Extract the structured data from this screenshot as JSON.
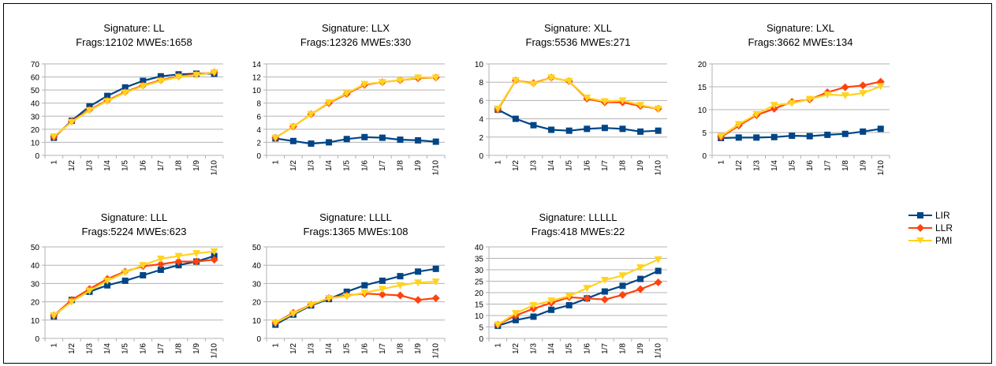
{
  "colors": {
    "LIR": "#004586",
    "LLR": "#ff420e",
    "PMI": "#ffd320",
    "grid": "#b3b3b3",
    "axis": "#b3b3b3"
  },
  "legend": [
    {
      "name": "LIR",
      "marker": "square"
    },
    {
      "name": "LLR",
      "marker": "diamond"
    },
    {
      "name": "PMI",
      "marker": "triangle-down"
    }
  ],
  "chart_data": [
    {
      "type": "line",
      "title": "Signature: LL",
      "subtitle": "Frags:12102 MWEs:1658",
      "categories": [
        "1",
        "1/2",
        "1/3",
        "1/4",
        "1/5",
        "1/6",
        "1/7",
        "1/8",
        "1/9",
        "1/10"
      ],
      "ylim": [
        0,
        70
      ],
      "ytick_step": 10,
      "grid": true,
      "series": [
        {
          "name": "LIR",
          "values": [
            13.5,
            26.5,
            37.5,
            45.5,
            52,
            57,
            60.5,
            62,
            62.5,
            62.5
          ]
        },
        {
          "name": "LLR",
          "values": [
            14,
            26,
            35,
            42,
            48.5,
            53.5,
            57.5,
            60.5,
            62,
            63.5
          ]
        },
        {
          "name": "PMI",
          "values": [
            14.5,
            25.5,
            34.5,
            41.5,
            48,
            53,
            57,
            60,
            61.5,
            63.5
          ]
        }
      ]
    },
    {
      "type": "line",
      "title": "Signature: LLX",
      "subtitle": "Frags:12326 MWEs:330",
      "categories": [
        "1",
        "1/2",
        "1/3",
        "1/4",
        "1/5",
        "1/6",
        "1/7",
        "1/8",
        "1/9",
        "1/10"
      ],
      "ylim": [
        0,
        14
      ],
      "ytick_step": 2,
      "grid": true,
      "series": [
        {
          "name": "LIR",
          "values": [
            2.6,
            2.2,
            1.8,
            2.0,
            2.5,
            2.8,
            2.7,
            2.4,
            2.3,
            2.1
          ]
        },
        {
          "name": "LLR",
          "values": [
            2.7,
            4.4,
            6.3,
            8.0,
            9.4,
            10.8,
            11.2,
            11.5,
            11.8,
            11.9
          ]
        },
        {
          "name": "PMI",
          "values": [
            2.7,
            4.4,
            6.3,
            8.1,
            9.5,
            10.9,
            11.2,
            11.5,
            11.9,
            11.9
          ]
        }
      ]
    },
    {
      "type": "line",
      "title": "Signature: XLL",
      "subtitle": "Frags:5536 MWEs:271",
      "categories": [
        "1",
        "1/2",
        "1/3",
        "1/4",
        "1/5",
        "1/6",
        "1/7",
        "1/8",
        "1/9",
        "1/10"
      ],
      "ylim": [
        0,
        10
      ],
      "ytick_step": 2,
      "grid": true,
      "series": [
        {
          "name": "LIR",
          "values": [
            5.0,
            4.0,
            3.3,
            2.8,
            2.7,
            2.9,
            3.0,
            2.9,
            2.6,
            2.7
          ]
        },
        {
          "name": "LLR",
          "values": [
            5.0,
            8.2,
            7.9,
            8.5,
            8.1,
            6.2,
            5.8,
            5.8,
            5.4,
            5.1
          ]
        },
        {
          "name": "PMI",
          "values": [
            5.1,
            8.2,
            7.8,
            8.5,
            8.1,
            6.3,
            5.9,
            6.0,
            5.5,
            5.1
          ]
        }
      ]
    },
    {
      "type": "line",
      "title": "Signature: LXL",
      "subtitle": "Frags:3662 MWEs:134",
      "categories": [
        "1",
        "1/2",
        "1/3",
        "1/4",
        "1/5",
        "1/6",
        "1/7",
        "1/8",
        "1/9",
        "1/10"
      ],
      "ylim": [
        0,
        20
      ],
      "ytick_step": 5,
      "grid": true,
      "series": [
        {
          "name": "LIR",
          "values": [
            3.8,
            3.9,
            3.9,
            4.0,
            4.3,
            4.2,
            4.5,
            4.7,
            5.2,
            5.8
          ]
        },
        {
          "name": "LLR",
          "values": [
            4.0,
            6.5,
            8.8,
            10.2,
            11.7,
            12.2,
            13.8,
            14.9,
            15.3,
            16.1
          ]
        },
        {
          "name": "PMI",
          "values": [
            4.2,
            6.8,
            9.0,
            11.0,
            11.4,
            12.3,
            13.3,
            13.1,
            13.6,
            15.1
          ]
        }
      ]
    },
    {
      "type": "line",
      "title": "Signature: LLL",
      "subtitle": "Frags:5224 MWEs:623",
      "categories": [
        "1",
        "1/2",
        "1/3",
        "1/4",
        "1/5",
        "1/6",
        "1/7",
        "1/8",
        "1/9",
        "1/10"
      ],
      "ylim": [
        0,
        50
      ],
      "ytick_step": 10,
      "grid": true,
      "series": [
        {
          "name": "LIR",
          "values": [
            12,
            21,
            25.5,
            29,
            31.5,
            34.5,
            37.5,
            40,
            42,
            45
          ]
        },
        {
          "name": "LLR",
          "values": [
            12.5,
            21,
            27,
            32.5,
            36.5,
            39.5,
            40.5,
            42,
            42,
            43
          ]
        },
        {
          "name": "PMI",
          "values": [
            12.5,
            20,
            26,
            31.5,
            36,
            40,
            43.5,
            45,
            46.5,
            47.5
          ]
        }
      ]
    },
    {
      "type": "line",
      "title": "Signature: LLLL",
      "subtitle": "Frags:1365 MWEs:108",
      "categories": [
        "1",
        "1/2",
        "1/3",
        "1/4",
        "1/5",
        "1/6",
        "1/7",
        "1/8",
        "1/9",
        "1/10"
      ],
      "ylim": [
        0,
        50
      ],
      "ytick_step": 10,
      "grid": true,
      "series": [
        {
          "name": "LIR",
          "values": [
            7.5,
            13,
            18,
            21.5,
            25.5,
            29,
            31.5,
            34,
            36.5,
            38
          ]
        },
        {
          "name": "LLR",
          "values": [
            8.5,
            14,
            18.5,
            22,
            23.5,
            24.5,
            24,
            23.5,
            21,
            22
          ]
        },
        {
          "name": "PMI",
          "values": [
            8.5,
            13.5,
            18.5,
            22,
            23,
            25,
            27,
            29,
            30.5,
            31
          ]
        }
      ]
    },
    {
      "type": "line",
      "title": "Signature: LLLLL",
      "subtitle": "Frags:418 MWEs:22",
      "categories": [
        "1",
        "1/2",
        "1/3",
        "1/4",
        "1/5",
        "1/6",
        "1/7",
        "1/8",
        "1/9",
        "1/10"
      ],
      "ylim": [
        0,
        40
      ],
      "ytick_step": 5,
      "grid": true,
      "series": [
        {
          "name": "LIR",
          "values": [
            5.5,
            8,
            9.5,
            12.5,
            14.5,
            17.5,
            20.5,
            23,
            26,
            29.5
          ]
        },
        {
          "name": "LLR",
          "values": [
            6,
            10,
            13,
            15.5,
            18,
            17.5,
            17,
            19,
            21.5,
            24.5
          ]
        },
        {
          "name": "PMI",
          "values": [
            6,
            11,
            14.5,
            16.5,
            18.5,
            22,
            25.5,
            27.5,
            31,
            34.5
          ]
        }
      ]
    }
  ]
}
